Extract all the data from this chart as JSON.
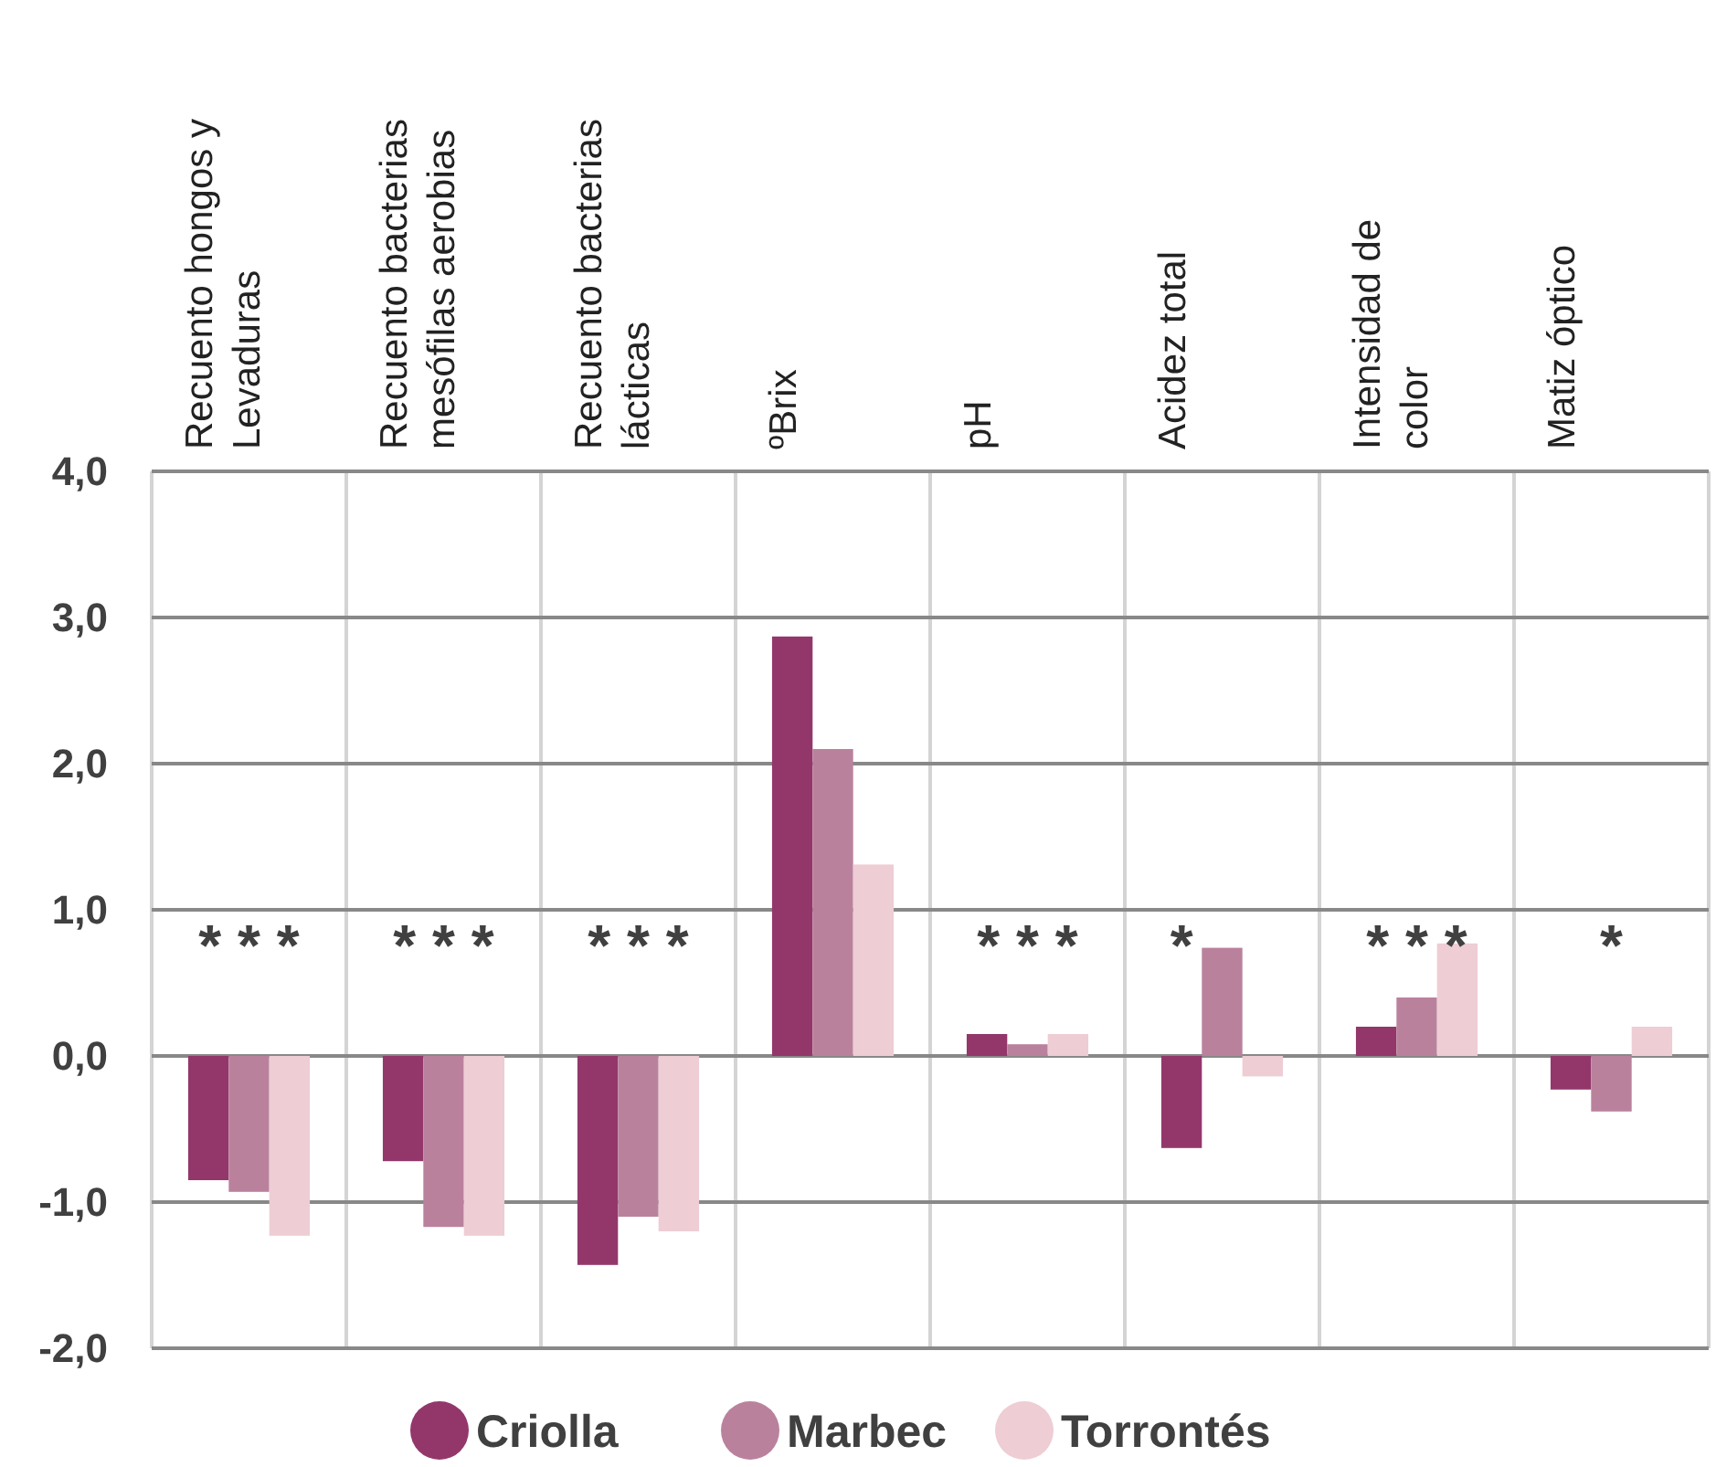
{
  "chart_data": {
    "type": "bar",
    "categories": [
      "Recuento hongos y Levaduras",
      "Recuento bacterias mesófilas aerobias",
      "Recuento bacterias lácticas",
      "ºBrix",
      "pH",
      "Acidez total",
      "Intensidad de color",
      "Matiz óptico"
    ],
    "series": [
      {
        "name": "Criolla",
        "color": "#93376b",
        "values": [
          -0.85,
          -0.72,
          -1.43,
          2.87,
          0.15,
          -0.63,
          0.2,
          -0.23
        ]
      },
      {
        "name": "Marbec",
        "color": "#ba819d",
        "values": [
          -0.93,
          -1.17,
          -1.1,
          2.1,
          0.08,
          0.74,
          0.4,
          -0.38
        ]
      },
      {
        "name": "Torrontés",
        "color": "#eecdd5",
        "values": [
          -1.23,
          -1.23,
          -1.2,
          1.31,
          0.15,
          -0.14,
          0.77,
          0.2
        ]
      }
    ],
    "ylim": [
      -2,
      4
    ],
    "yticks": [
      {
        "value": -2,
        "label": "-2,0"
      },
      {
        "value": -1,
        "label": "-1,0"
      },
      {
        "value": 0,
        "label": "0,0"
      },
      {
        "value": 1,
        "label": "1,0"
      },
      {
        "value": 2,
        "label": "2,0"
      },
      {
        "value": 3,
        "label": "3,0"
      },
      {
        "value": 4,
        "label": "4,0"
      }
    ],
    "grid": true,
    "legend": "bottom",
    "annotations": [
      "* * *",
      "* * *",
      "* * *",
      "* * *",
      "*",
      "* * *",
      "*"
    ]
  }
}
